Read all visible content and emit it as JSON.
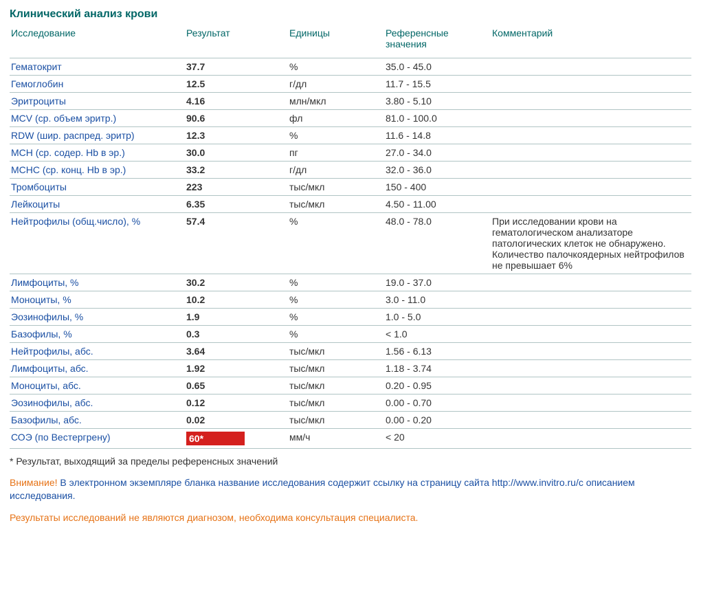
{
  "colors": {
    "header_text": "#006666",
    "link_text": "#1a4fa3",
    "body_text": "#333333",
    "row_border": "#b0c4c4",
    "warn_text": "#e67215",
    "flag_bg": "#d4201e",
    "flag_text": "#ffffff"
  },
  "title": "Клинический анализ крови",
  "columns": {
    "test": "Исследование",
    "result": "Результат",
    "units": "Единицы",
    "ref": "Референсные значения",
    "comment": "Комментарий"
  },
  "rows": [
    {
      "test": "Гематокрит",
      "result": "37.7",
      "units": "%",
      "ref": "35.0 - 45.0",
      "comment": "",
      "flagged": false
    },
    {
      "test": "Гемоглобин",
      "result": "12.5",
      "units": "г/дл",
      "ref": "11.7 - 15.5",
      "comment": "",
      "flagged": false
    },
    {
      "test": "Эритроциты",
      "result": "4.16",
      "units": "млн/мкл",
      "ref": "3.80 - 5.10",
      "comment": "",
      "flagged": false
    },
    {
      "test": "MCV (ср. объем эритр.)",
      "result": "90.6",
      "units": "фл",
      "ref": "81.0 - 100.0",
      "comment": "",
      "flagged": false
    },
    {
      "test": "RDW (шир. распред. эритр)",
      "result": "12.3",
      "units": "%",
      "ref": "11.6 - 14.8",
      "comment": "",
      "flagged": false
    },
    {
      "test": "MCH (ср. содер. Hb в эр.)",
      "result": "30.0",
      "units": "пг",
      "ref": "27.0 - 34.0",
      "comment": "",
      "flagged": false
    },
    {
      "test": "MCHC (ср. конц. Hb в эр.)",
      "result": "33.2",
      "units": "г/дл",
      "ref": "32.0 - 36.0",
      "comment": "",
      "flagged": false
    },
    {
      "test": "Тромбоциты",
      "result": "223",
      "units": "тыс/мкл",
      "ref": "150 - 400",
      "comment": "",
      "flagged": false
    },
    {
      "test": "Лейкоциты",
      "result": "6.35",
      "units": "тыс/мкл",
      "ref": "4.50 - 11.00",
      "comment": "",
      "flagged": false
    },
    {
      "test": "Нейтрофилы (общ.число), %",
      "result": "57.4",
      "units": "%",
      "ref": "48.0 - 78.0",
      "comment": "При исследовании крови на гематологическом анализаторе патологических клеток не обнаружено. Количество палочкоядерных нейтрофилов не превышает 6%",
      "flagged": false
    },
    {
      "test": "Лимфоциты, %",
      "result": "30.2",
      "units": "%",
      "ref": "19.0 - 37.0",
      "comment": "",
      "flagged": false
    },
    {
      "test": "Моноциты, %",
      "result": "10.2",
      "units": "%",
      "ref": "3.0 - 11.0",
      "comment": "",
      "flagged": false
    },
    {
      "test": "Эозинофилы, %",
      "result": "1.9",
      "units": "%",
      "ref": "1.0 - 5.0",
      "comment": "",
      "flagged": false
    },
    {
      "test": "Базофилы, %",
      "result": "0.3",
      "units": "%",
      "ref": "< 1.0",
      "comment": "",
      "flagged": false
    },
    {
      "test": "Нейтрофилы, абс.",
      "result": "3.64",
      "units": "тыс/мкл",
      "ref": "1.56 - 6.13",
      "comment": "",
      "flagged": false
    },
    {
      "test": "Лимфоциты, абс.",
      "result": "1.92",
      "units": "тыс/мкл",
      "ref": "1.18 - 3.74",
      "comment": "",
      "flagged": false
    },
    {
      "test": "Моноциты, абс.",
      "result": "0.65",
      "units": "тыс/мкл",
      "ref": "0.20 - 0.95",
      "comment": "",
      "flagged": false
    },
    {
      "test": "Эозинофилы, абс.",
      "result": "0.12",
      "units": "тыс/мкл",
      "ref": "0.00 - 0.70",
      "comment": "",
      "flagged": false
    },
    {
      "test": "Базофилы, абс.",
      "result": "0.02",
      "units": "тыс/мкл",
      "ref": "0.00 - 0.20",
      "comment": "",
      "flagged": false
    },
    {
      "test": "СОЭ (по Вестергрену)",
      "result": "60*",
      "units": "мм/ч",
      "ref": "< 20",
      "comment": "",
      "flagged": true
    }
  ],
  "footnote": "* Результат, выходящий за пределы референсных значений",
  "notice_warn": "Внимание!",
  "notice_body": " В электронном экземпляре бланка название исследования содержит ссылку на страницу сайта http://www.invitro.ru/с описанием исследования.",
  "disclaimer": "Результаты исследований не являются диагнозом, необходима консультация специалиста."
}
